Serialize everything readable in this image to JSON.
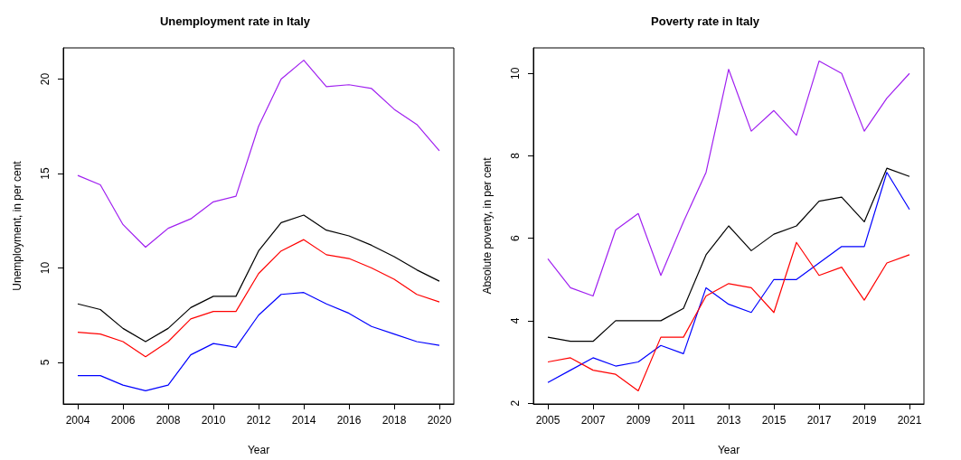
{
  "chart_data": [
    {
      "type": "line",
      "title": "Unemployment rate in Italy",
      "xlabel": "Year",
      "ylabel": "Unemployment, in per cent",
      "x": [
        2004,
        2005,
        2006,
        2007,
        2008,
        2009,
        2010,
        2011,
        2012,
        2013,
        2014,
        2015,
        2016,
        2017,
        2018,
        2019,
        2020
      ],
      "xlim": [
        2003.36,
        2020.64
      ],
      "xticks": [
        2004,
        2006,
        2008,
        2010,
        2012,
        2014,
        2016,
        2018,
        2020
      ],
      "ylim": [
        2.8,
        21.65
      ],
      "yticks": [
        5,
        10,
        15,
        20
      ],
      "series": [
        {
          "color": "#a020f0",
          "values": [
            14.9,
            14.4,
            12.3,
            11.1,
            12.1,
            12.6,
            13.5,
            13.8,
            17.5,
            20.0,
            21.0,
            19.6,
            19.7,
            19.5,
            18.4,
            17.6,
            16.2
          ]
        },
        {
          "color": "#000000",
          "values": [
            8.1,
            7.8,
            6.8,
            6.1,
            6.8,
            7.9,
            8.5,
            8.5,
            10.9,
            12.4,
            12.8,
            12.0,
            11.7,
            11.2,
            10.6,
            9.9,
            9.3
          ]
        },
        {
          "color": "#ff0000",
          "values": [
            6.6,
            6.5,
            6.1,
            5.3,
            6.1,
            7.3,
            7.7,
            7.7,
            9.7,
            10.9,
            11.5,
            10.7,
            10.5,
            10.0,
            9.4,
            8.6,
            8.2
          ]
        },
        {
          "color": "#0000ff",
          "values": [
            4.3,
            4.3,
            3.8,
            3.5,
            3.8,
            5.4,
            6.0,
            5.8,
            7.5,
            8.6,
            8.7,
            8.1,
            7.6,
            6.9,
            6.5,
            6.1,
            5.9
          ]
        }
      ]
    },
    {
      "type": "line",
      "title": "Poverty rate in Italy",
      "xlabel": "Year",
      "ylabel": "Absolute poverty, in per cent",
      "x": [
        2005,
        2006,
        2007,
        2008,
        2009,
        2010,
        2011,
        2012,
        2013,
        2014,
        2015,
        2016,
        2017,
        2018,
        2019,
        2020,
        2021
      ],
      "xlim": [
        2004.36,
        2021.64
      ],
      "xticks": [
        2005,
        2007,
        2009,
        2011,
        2013,
        2015,
        2017,
        2019,
        2021
      ],
      "ylim": [
        1.98,
        10.62
      ],
      "yticks": [
        2,
        4,
        6,
        8,
        10
      ],
      "series": [
        {
          "color": "#a020f0",
          "values": [
            5.5,
            4.8,
            4.6,
            6.2,
            6.6,
            5.1,
            6.4,
            7.6,
            10.1,
            8.6,
            9.1,
            8.5,
            10.3,
            10.0,
            8.6,
            9.4,
            10.0
          ]
        },
        {
          "color": "#000000",
          "values": [
            3.6,
            3.5,
            3.5,
            4.0,
            4.0,
            4.0,
            4.3,
            5.6,
            6.3,
            5.7,
            6.1,
            6.3,
            6.9,
            7.0,
            6.4,
            7.7,
            7.5
          ]
        },
        {
          "color": "#0000ff",
          "values": [
            2.5,
            2.8,
            3.1,
            2.9,
            3.0,
            3.4,
            3.2,
            4.8,
            4.4,
            4.2,
            5.0,
            5.0,
            5.4,
            5.8,
            5.8,
            7.6,
            6.7
          ]
        },
        {
          "color": "#ff0000",
          "values": [
            3.0,
            3.1,
            2.8,
            2.7,
            2.3,
            3.6,
            3.6,
            4.6,
            4.9,
            4.8,
            4.2,
            5.9,
            5.1,
            5.3,
            4.5,
            5.4,
            5.6
          ]
        }
      ]
    }
  ]
}
